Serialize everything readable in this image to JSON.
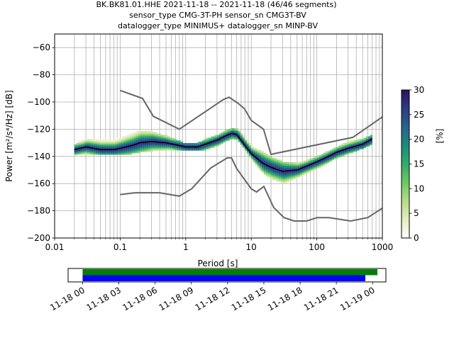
{
  "title_lines": [
    "BK.BK81.01.HHE   2021-11-18 -- 2021-11-18  (46/46 segments)",
    "sensor_type CMG-3T-PH sensor_sn CMG3T-BV",
    "datalogger_type MINIMUS+ datalogger_sn MINP-BV"
  ],
  "chart_data": [
    {
      "type": "heatmap",
      "xlabel": "Period [s]",
      "ylabel": "Power [m²/s⁴/Hz] [dB]",
      "xscale": "log",
      "xlim": [
        0.01,
        1000
      ],
      "ylim": [
        -200,
        -50
      ],
      "xticks": [
        0.01,
        0.1,
        1,
        10,
        100,
        1000
      ],
      "xtick_labels": [
        "0.01",
        "0.1",
        "1",
        "10",
        "100",
        "1000"
      ],
      "yticks": [
        -200,
        -180,
        -160,
        -140,
        -120,
        -100,
        -80,
        -60
      ],
      "ytick_labels": [
        "−200",
        "−180",
        "−160",
        "−140",
        "−120",
        "−100",
        "−80",
        "−60"
      ],
      "grid": true,
      "colorbar": {
        "label": "[%]",
        "min": 0,
        "max": 30,
        "ticks": [
          0,
          5,
          10,
          15,
          20,
          25,
          30
        ],
        "tick_labels": [
          "0",
          "5",
          "10",
          "15",
          "20",
          "25",
          "30"
        ],
        "colormap": [
          "#ffffff",
          "#e4edbd",
          "#b5dd87",
          "#6dc862",
          "#2fad6a",
          "#1b8a7d",
          "#27648c",
          "#2d3b84",
          "#2c115f"
        ]
      },
      "mode_curve": {
        "color": "#000000",
        "x": [
          0.02,
          0.03,
          0.05,
          0.08,
          0.1,
          0.15,
          0.2,
          0.3,
          0.5,
          0.8,
          1,
          1.5,
          2,
          3,
          4,
          5,
          6,
          8,
          10,
          15,
          20,
          30,
          50,
          80,
          100,
          150,
          200,
          300,
          500,
          700
        ],
        "y": [
          -135,
          -133,
          -135,
          -135,
          -134,
          -132,
          -130,
          -129,
          -130,
          -132,
          -133,
          -133,
          -131,
          -128,
          -125,
          -123,
          -124,
          -132,
          -138,
          -145,
          -148,
          -151,
          -150,
          -146,
          -144,
          -140,
          -137,
          -134,
          -131,
          -127
        ]
      },
      "noise_models": [
        {
          "name": "high",
          "color": "#666666",
          "x": [
            0.1,
            0.22,
            0.32,
            0.8,
            3.8,
            4.6,
            6.3,
            7.9,
            10,
            15.4,
            20,
            354.8,
            1000
          ],
          "y": [
            -91.5,
            -97.4,
            -110.5,
            -120,
            -98,
            -96.5,
            -101,
            -105,
            -113.5,
            -120,
            -138.5,
            -126,
            -111
          ]
        },
        {
          "name": "low",
          "color": "#666666",
          "x": [
            0.1,
            0.17,
            0.4,
            0.8,
            1.24,
            2.4,
            4.3,
            5,
            6,
            10,
            12,
            15.6,
            21.9,
            31.6,
            45,
            70,
            101,
            154,
            328,
            600,
            1000
          ],
          "y": [
            -168,
            -166.7,
            -166.7,
            -169.2,
            -163.7,
            -148.6,
            -141.1,
            -141.1,
            -149,
            -163.8,
            -166.2,
            -162.1,
            -177.5,
            -185,
            -187.5,
            -187.5,
            -185,
            -185,
            -187.5,
            -185,
            -178
          ]
        }
      ],
      "bands": [
        {
          "x": [
            0.02,
            0.03,
            0.05,
            0.08,
            0.1,
            0.15,
            0.2,
            0.3,
            0.5,
            0.8,
            1,
            1.5,
            2,
            3,
            4,
            5,
            6,
            8,
            10,
            15,
            20,
            30,
            50,
            80,
            100,
            150,
            200,
            300,
            500,
            700
          ],
          "low": [
            -138,
            -137,
            -138,
            -138,
            -138,
            -137,
            -136,
            -135,
            -135,
            -135,
            -135,
            -135,
            -134,
            -131,
            -128,
            -126,
            -127,
            -135,
            -142,
            -152,
            -156,
            -159,
            -155,
            -150,
            -148,
            -143,
            -140,
            -137,
            -133,
            -130
          ],
          "high": [
            -132,
            -128,
            -128,
            -128,
            -127,
            -124,
            -122,
            -123,
            -126,
            -130,
            -132,
            -131,
            -128,
            -125,
            -122,
            -120,
            -121,
            -128,
            -134,
            -138,
            -142,
            -145,
            -146,
            -143,
            -141,
            -137,
            -134,
            -130,
            -128,
            -125
          ]
        }
      ]
    },
    {
      "type": "timeline",
      "x_ticks": [
        "11-18 00",
        "11-18 03",
        "11-18 06",
        "11-18 09",
        "11-18 12",
        "11-18 15",
        "11-18 18",
        "11-18 21",
        "11-19 00"
      ],
      "x_range_hours": [
        -1.2,
        25.1
      ],
      "segments": [
        {
          "color": "#008000",
          "start_hour": 0,
          "end_hour": 24.4
        },
        {
          "color": "#0000ff",
          "start_hour": 0,
          "end_hour": 23.4
        }
      ]
    }
  ]
}
